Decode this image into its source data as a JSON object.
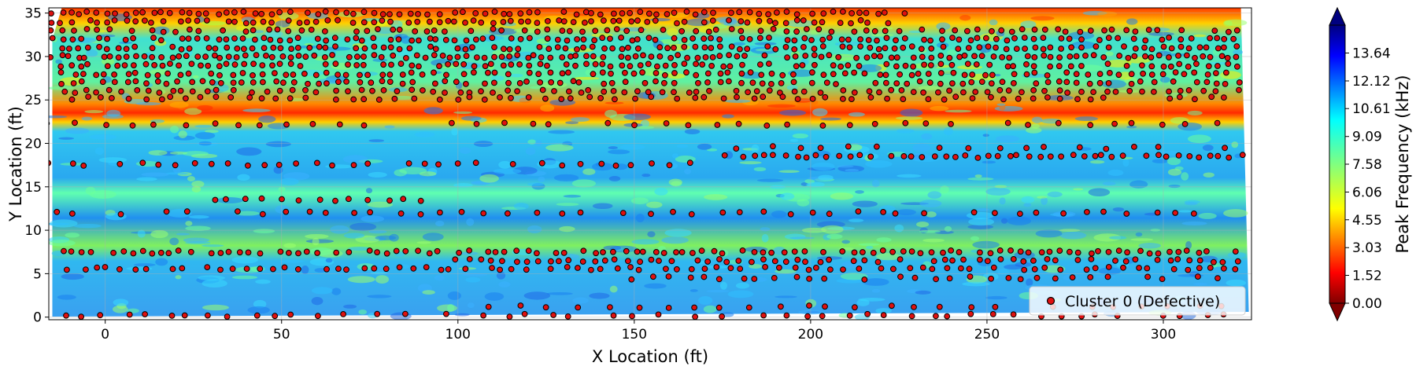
{
  "chart_data": {
    "type": "scatter",
    "title": "",
    "xlabel": "X Location (ft)",
    "ylabel": "Y Location (ft)",
    "xlim": [
      -16,
      325
    ],
    "ylim": [
      -0.3,
      35.6
    ],
    "xticks": [
      0,
      50,
      100,
      150,
      200,
      250,
      300
    ],
    "yticks": [
      0,
      5,
      10,
      15,
      20,
      25,
      30,
      35
    ],
    "grid": true,
    "legend": {
      "position": "lower-right",
      "entries": [
        "Cluster 0 (Defective)"
      ]
    },
    "background_field": {
      "description_type": "filled-contour",
      "colormap": "jet-reversed",
      "colorbar_label": "Peak Frequency (kHz)",
      "colorbar_ticks": [
        "0.00",
        "1.52",
        "3.03",
        "4.55",
        "6.06",
        "7.58",
        "9.09",
        "10.61",
        "12.12",
        "13.64"
      ],
      "colorbar_range": [
        0,
        15.16
      ],
      "colorbar_extend": "both"
    },
    "series": [
      {
        "name": "Cluster 0 (Defective)",
        "marker_face": "#e01010",
        "marker_edge": "#000000",
        "rows": [
          {
            "y": 35.0,
            "x_start": -15,
            "x_end": 228,
            "step": 2.6
          },
          {
            "y": 34.0,
            "x_start": -15,
            "x_end": 225,
            "step": 2.6
          },
          {
            "y": 33.0,
            "x_start": -15,
            "x_end": 322,
            "step": 3.2
          },
          {
            "y": 32.0,
            "x_start": -15,
            "x_end": 322,
            "step": 2.6
          },
          {
            "y": 31.0,
            "x_start": -15,
            "x_end": 322,
            "step": 2.6
          },
          {
            "y": 30.0,
            "x_start": -15,
            "x_end": 322,
            "step": 2.4
          },
          {
            "y": 29.0,
            "x_start": -15,
            "x_end": 322,
            "step": 2.6
          },
          {
            "y": 28.0,
            "x_start": -12,
            "x_end": 322,
            "step": 3.0
          },
          {
            "y": 27.0,
            "x_start": -12,
            "x_end": 322,
            "step": 3.0
          },
          {
            "y": 26.0,
            "x_start": -12,
            "x_end": 322,
            "step": 3.4
          },
          {
            "y": 25.2,
            "x_start": -10,
            "x_end": 320,
            "step": 4.2
          },
          {
            "y": 22.2,
            "x_start": -15,
            "x_end": 322,
            "step": 7.5
          },
          {
            "y": 19.5,
            "x_start": 180,
            "x_end": 322,
            "step": 8.0
          },
          {
            "y": 18.5,
            "x_start": 175,
            "x_end": 322,
            "step": 3.0
          },
          {
            "y": 17.6,
            "x_start": -15,
            "x_end": 165,
            "step": 5.0
          },
          {
            "y": 13.5,
            "x_start": 30,
            "x_end": 90,
            "step": 5.0
          },
          {
            "y": 12.0,
            "x_start": -15,
            "x_end": 322,
            "step": 6.5
          },
          {
            "y": 7.5,
            "x_start": -15,
            "x_end": 322,
            "step": 2.8
          },
          {
            "y": 6.5,
            "x_start": 100,
            "x_end": 322,
            "step": 3.2
          },
          {
            "y": 5.6,
            "x_start": -10,
            "x_end": 322,
            "step": 3.6
          },
          {
            "y": 4.5,
            "x_start": 150,
            "x_end": 320,
            "step": 5.0
          },
          {
            "y": 1.2,
            "x_start": 110,
            "x_end": 320,
            "step": 8.0
          },
          {
            "y": 0.2,
            "x_start": -12,
            "x_end": 322,
            "step": 6.0
          }
        ]
      }
    ]
  }
}
